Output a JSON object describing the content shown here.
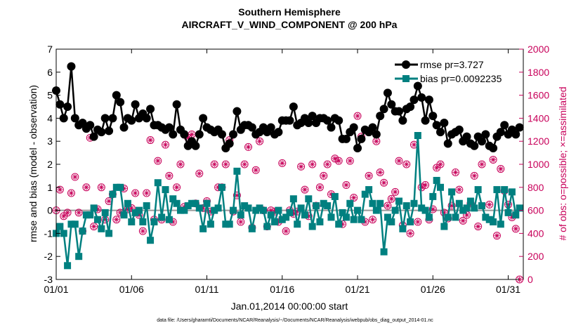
{
  "chart_data": {
    "type": "line",
    "title": "Southern Hemisphere",
    "subtitle": "AIRCRAFT_V_WIND_COMPONENT @ 200 hPa",
    "xlabel": "Jan.01,2014 00:00:00 start",
    "ylabel": "rmse and bias (model - observation)",
    "y2label": "# of obs: o=possible; ×=assimilated",
    "footnote": "data file: /Users/gharamti/Documents/NCAR/Reanalysis/~/Documents/NCAR/Reanalysis/webpub/obs_diag_output_2014-01.nc",
    "xlim": [
      1,
      32
    ],
    "ylim": [
      -3,
      7
    ],
    "y2lim": [
      0,
      2000
    ],
    "xticks": [
      1,
      6,
      11,
      16,
      21,
      26,
      31
    ],
    "xtick_labels": [
      "01/01",
      "01/06",
      "01/11",
      "01/16",
      "01/21",
      "01/26",
      "01/31"
    ],
    "yticks": [
      -3,
      -2,
      -1,
      0,
      1,
      2,
      3,
      4,
      5,
      6,
      7
    ],
    "ytick_labels": [
      "-3",
      "-2",
      "-1",
      "0",
      "1",
      "2",
      "3",
      "4",
      "5",
      "6",
      "7"
    ],
    "y2ticks": [
      0,
      200,
      400,
      600,
      800,
      1000,
      1200,
      1400,
      1600,
      1800,
      2000
    ],
    "y2tick_labels": [
      "0",
      "200",
      "400",
      "600",
      "800",
      "1000",
      "1200",
      "1400",
      "1600",
      "1800",
      "2000"
    ],
    "legend_position": "top-right",
    "colors": {
      "rmse": "#000000",
      "bias": "#008080",
      "obs": "#c8005a",
      "zero": "#999999"
    },
    "series": [
      {
        "name": "rmse pr=3.727",
        "marker": "circle",
        "x": [
          1.0,
          1.25,
          1.5,
          1.75,
          2.0,
          2.25,
          2.5,
          2.75,
          3.0,
          3.25,
          3.5,
          3.75,
          4.0,
          4.25,
          4.5,
          4.75,
          5.0,
          5.25,
          5.5,
          5.75,
          6.0,
          6.25,
          6.5,
          6.75,
          7.0,
          7.25,
          7.5,
          7.75,
          8.0,
          8.25,
          8.5,
          8.75,
          9.0,
          9.25,
          9.5,
          9.75,
          10.0,
          10.25,
          10.5,
          10.75,
          11.0,
          11.25,
          11.5,
          11.75,
          12.0,
          12.25,
          12.5,
          12.75,
          13.0,
          13.25,
          13.5,
          13.75,
          14.0,
          14.25,
          14.5,
          14.75,
          15.0,
          15.25,
          15.5,
          15.75,
          16.0,
          16.25,
          16.5,
          16.75,
          17.0,
          17.25,
          17.5,
          17.75,
          18.0,
          18.25,
          18.5,
          18.75,
          19.0,
          19.25,
          19.5,
          19.75,
          20.0,
          20.25,
          20.5,
          20.75,
          21.0,
          21.25,
          21.5,
          21.75,
          22.0,
          22.25,
          22.5,
          22.75,
          23.0,
          23.25,
          23.5,
          23.75,
          24.0,
          24.25,
          24.5,
          24.75,
          25.0,
          25.25,
          25.5,
          25.75,
          26.0,
          26.25,
          26.5,
          26.75,
          27.0,
          27.25,
          27.5,
          27.75,
          28.0,
          28.25,
          28.5,
          28.75,
          29.0,
          29.25,
          29.5,
          29.75,
          30.0,
          30.25,
          30.5,
          30.75,
          31.0,
          31.25,
          31.5,
          31.75
        ],
        "values": [
          5.2,
          4.6,
          4.0,
          4.5,
          6.25,
          4.0,
          3.7,
          3.8,
          3.55,
          3.7,
          3.2,
          3.5,
          3.4,
          4.0,
          3.45,
          4.0,
          5.0,
          4.7,
          3.6,
          4.0,
          3.9,
          4.6,
          4.0,
          4.2,
          4.0,
          4.4,
          3.7,
          3.7,
          3.6,
          3.5,
          3.6,
          3.3,
          4.6,
          3.5,
          3.3,
          2.8,
          3.0,
          2.8,
          3.3,
          4.0,
          3.6,
          3.5,
          3.4,
          3.5,
          3.3,
          2.7,
          2.9,
          3.3,
          4.3,
          3.5,
          3.7,
          3.7,
          3.6,
          3.3,
          3.4,
          3.6,
          3.4,
          3.6,
          3.3,
          3.4,
          3.9,
          3.9,
          3.9,
          4.5,
          3.7,
          3.8,
          4.0,
          3.8,
          4.1,
          3.8,
          4.0,
          4.0,
          3.9,
          3.6,
          4.0,
          3.9,
          3.1,
          3.1,
          3.4,
          3.6,
          2.7,
          3.1,
          3.5,
          3.4,
          3.6,
          3.3,
          4.1,
          4.4,
          5.1,
          4.6,
          4.3,
          4.3,
          3.9,
          4.4,
          4.5,
          4.8,
          5.4,
          4.9,
          3.9,
          4.8,
          4.1,
          3.7,
          3.4,
          3.8,
          2.9,
          3.3,
          3.4,
          3.5,
          3.0,
          3.2,
          2.9,
          2.8,
          3.2,
          3.0,
          3.3,
          2.8,
          2.7,
          3.2,
          3.4,
          3.7,
          3.3,
          3.5,
          3.3,
          3.6
        ]
      },
      {
        "name": "bias pr=0.0092235",
        "marker": "square",
        "x": [
          1.0,
          1.25,
          1.5,
          1.75,
          2.0,
          2.25,
          2.5,
          2.75,
          3.0,
          3.25,
          3.5,
          3.75,
          4.0,
          4.25,
          4.5,
          4.75,
          5.0,
          5.25,
          5.5,
          5.75,
          6.0,
          6.25,
          6.5,
          6.75,
          7.0,
          7.25,
          7.5,
          7.75,
          8.0,
          8.25,
          8.5,
          8.75,
          9.0,
          9.25,
          9.5,
          9.75,
          10.0,
          10.25,
          10.5,
          10.75,
          11.0,
          11.25,
          11.5,
          11.75,
          12.0,
          12.25,
          12.5,
          12.75,
          13.0,
          13.25,
          13.5,
          13.75,
          14.0,
          14.25,
          14.5,
          14.75,
          15.0,
          15.25,
          15.5,
          15.75,
          16.0,
          16.25,
          16.5,
          16.75,
          17.0,
          17.25,
          17.5,
          17.75,
          18.0,
          18.25,
          18.5,
          18.75,
          19.0,
          19.25,
          19.5,
          19.75,
          20.0,
          20.25,
          20.5,
          20.75,
          21.0,
          21.25,
          21.5,
          21.75,
          22.0,
          22.25,
          22.5,
          22.75,
          23.0,
          23.25,
          23.5,
          23.75,
          24.0,
          24.25,
          24.5,
          24.75,
          25.0,
          25.25,
          25.5,
          25.75,
          26.0,
          26.25,
          26.5,
          26.75,
          27.0,
          27.25,
          27.5,
          27.75,
          28.0,
          28.25,
          28.5,
          28.75,
          29.0,
          29.25,
          29.5,
          29.75,
          30.0,
          30.25,
          30.5,
          30.75,
          31.0,
          31.25,
          31.5,
          31.75
        ],
        "values": [
          -1.0,
          -0.7,
          -1.0,
          -2.4,
          -0.6,
          -0.6,
          -2.0,
          -0.9,
          -0.2,
          -0.2,
          0.1,
          -0.4,
          -0.8,
          -0.1,
          -1.0,
          0.7,
          1.0,
          1.0,
          -0.2,
          0.3,
          -0.5,
          -0.1,
          0.0,
          -0.5,
          0.2,
          -1.3,
          -0.5,
          1.2,
          -0.3,
          0.9,
          -0.4,
          0.5,
          0.3,
          0.0,
          0.0,
          0.2,
          0.3,
          0.3,
          0.1,
          -0.8,
          0.3,
          -0.6,
          0.0,
          0.1,
          1.0,
          -0.6,
          -0.6,
          0.0,
          1.7,
          -0.2,
          0.2,
          0.1,
          -0.8,
          0.0,
          0.1,
          0.0,
          -0.7,
          -0.2,
          -0.5,
          0.0,
          -0.4,
          -0.3,
          -0.1,
          0.5,
          -0.6,
          0.1,
          -0.2,
          0.5,
          -0.7,
          0.2,
          -0.5,
          0.3,
          0.2,
          -0.3,
          0.6,
          -0.6,
          -0.1,
          -0.3,
          0.3,
          -0.4,
          0.0,
          -0.4,
          0.7,
          0.9,
          0.3,
          0.0,
          0.3,
          -1.8,
          -0.3,
          -0.5,
          0.0,
          0.4,
          -0.8,
          0.2,
          -0.5,
          0.3,
          3.25,
          0.1,
          0.0,
          -0.3,
          0.6,
          1.3,
          1.0,
          -0.7,
          -0.3,
          0.8,
          -0.3,
          0.3,
          0.0,
          0.1,
          0.4,
          0.1,
          0.9,
          0.2,
          -0.3,
          -0.4,
          -0.5,
          0.9,
          -0.6,
          0.9,
          -0.1,
          0.8,
          -0.2,
          0.1
        ]
      }
    ],
    "obs_counts": {
      "name": "obs count",
      "marker": "circle-asterisk",
      "x": [
        1.0,
        1.25,
        1.5,
        1.75,
        2.0,
        2.25,
        2.5,
        2.75,
        3.0,
        3.25,
        3.5,
        3.75,
        4.0,
        4.25,
        4.5,
        4.75,
        5.0,
        5.25,
        5.5,
        5.75,
        6.0,
        6.25,
        6.5,
        6.75,
        7.0,
        7.25,
        7.5,
        7.75,
        8.0,
        8.25,
        8.5,
        8.75,
        9.0,
        9.25,
        9.5,
        9.75,
        10.0,
        10.25,
        10.5,
        10.75,
        11.0,
        11.25,
        11.5,
        11.75,
        12.0,
        12.25,
        12.5,
        12.75,
        13.0,
        13.25,
        13.5,
        13.75,
        14.0,
        14.25,
        14.5,
        14.75,
        15.0,
        15.25,
        15.5,
        15.75,
        16.0,
        16.25,
        16.5,
        16.75,
        17.0,
        17.25,
        17.5,
        17.75,
        18.0,
        18.25,
        18.5,
        18.75,
        19.0,
        19.25,
        19.5,
        19.75,
        20.0,
        20.25,
        20.5,
        20.75,
        21.0,
        21.25,
        21.5,
        21.75,
        22.0,
        22.25,
        22.5,
        22.75,
        23.0,
        23.25,
        23.5,
        23.75,
        24.0,
        24.25,
        24.5,
        24.75,
        25.0,
        25.25,
        25.5,
        25.75,
        26.0,
        26.25,
        26.5,
        26.75,
        27.0,
        27.25,
        27.5,
        27.75,
        28.0,
        28.25,
        28.5,
        28.75,
        29.0,
        29.25,
        29.5,
        29.75,
        30.0,
        30.25,
        30.5,
        30.75,
        31.0,
        31.25,
        31.5,
        31.75
      ],
      "values": [
        600,
        780,
        550,
        580,
        750,
        890,
        580,
        420,
        800,
        1230,
        460,
        610,
        800,
        520,
        680,
        740,
        520,
        580,
        790,
        610,
        620,
        750,
        560,
        420,
        750,
        1210,
        520,
        1030,
        520,
        1170,
        900,
        500,
        800,
        1000,
        630,
        1230,
        1260,
        660,
        920,
        620,
        680,
        590,
        1000,
        800,
        800,
        1000,
        1210,
        590,
        730,
        500,
        1000,
        1150,
        450,
        950,
        1200,
        600,
        460,
        600,
        590,
        500,
        1010,
        420,
        600,
        570,
        590,
        980,
        780,
        550,
        1000,
        640,
        800,
        900,
        1000,
        740,
        1050,
        1030,
        480,
        820,
        1030,
        710,
        1420,
        1240,
        500,
        900,
        520,
        1200,
        930,
        840,
        640,
        700,
        760,
        1030,
        470,
        1000,
        400,
        1170,
        500,
        800,
        820,
        520,
        610,
        970,
        1000,
        580,
        530,
        640,
        930,
        780,
        510,
        560,
        660,
        900,
        460,
        1000,
        1260,
        650,
        1040,
        380,
        960,
        770,
        650,
        540,
        440,
        0
      ]
    }
  }
}
